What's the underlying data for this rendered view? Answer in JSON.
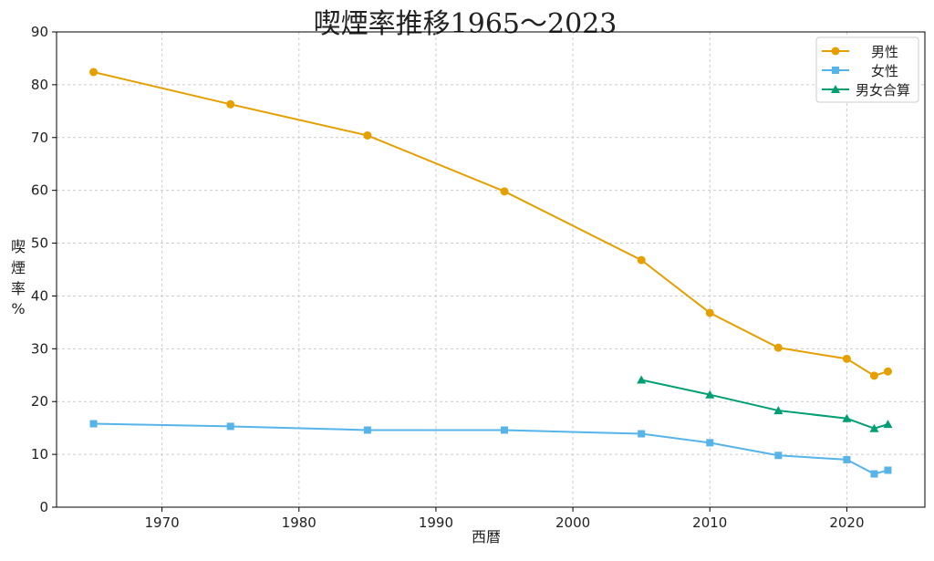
{
  "chart_data": {
    "type": "line",
    "title": "喫煙率推移1965〜2023",
    "xlabel": "西暦",
    "ylabel": "喫煙率%",
    "ylabel_chars": [
      "喫",
      "煙",
      "率",
      "%"
    ],
    "xlim": [
      1962.3,
      2025.7
    ],
    "ylim": [
      0,
      90
    ],
    "xticks": [
      1970,
      1980,
      1990,
      2000,
      2010,
      2020
    ],
    "yticks": [
      0,
      10,
      20,
      30,
      40,
      50,
      60,
      70,
      80,
      90
    ],
    "grid": true,
    "legend_position": "top-right",
    "series": [
      {
        "name": "男性",
        "color": "#E69F00",
        "marker": "circle",
        "x": [
          1965,
          1975,
          1985,
          1995,
          2005,
          2010,
          2015,
          2020,
          2022,
          2023
        ],
        "y": [
          82.4,
          76.3,
          70.4,
          59.8,
          46.8,
          36.8,
          30.2,
          28.1,
          24.9,
          25.7
        ]
      },
      {
        "name": "女性",
        "color": "#56B4E9",
        "marker": "square",
        "x": [
          1965,
          1975,
          1985,
          1995,
          2005,
          2010,
          2015,
          2020,
          2022,
          2023
        ],
        "y": [
          15.8,
          15.3,
          14.6,
          14.6,
          13.9,
          12.2,
          9.8,
          9.0,
          6.3,
          7.0
        ]
      },
      {
        "name": "男女合算",
        "color": "#009E73",
        "marker": "triangle",
        "x": [
          2005,
          2010,
          2015,
          2020,
          2022,
          2023
        ],
        "y": [
          24.1,
          21.3,
          18.3,
          16.8,
          14.9,
          15.7
        ]
      }
    ]
  }
}
